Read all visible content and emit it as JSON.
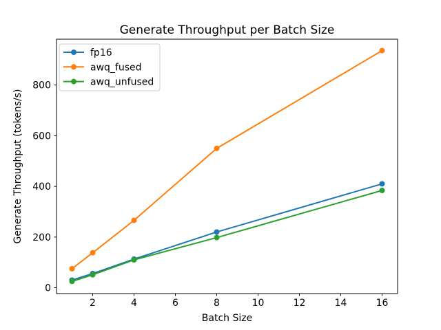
{
  "figure": {
    "background": "#ffffff",
    "spine_color": "#000000",
    "text_color": "#000000"
  },
  "chart_data": {
    "type": "line",
    "title": "Generate Throughput per Batch Size",
    "xlabel": "Batch Size",
    "ylabel": "Generate Throughput (tokens/s)",
    "x": [
      1,
      2,
      4,
      8,
      16
    ],
    "series": [
      {
        "name": "fp16",
        "color": "#1f77b4",
        "values": [
          30,
          56,
          113,
          220,
          410
        ]
      },
      {
        "name": "awq_fused",
        "color": "#ff7f0e",
        "values": [
          75,
          138,
          266,
          550,
          936
        ]
      },
      {
        "name": "awq_unfused",
        "color": "#2ca02c",
        "values": [
          25,
          51,
          110,
          198,
          384
        ]
      }
    ],
    "xticks": [
      2,
      4,
      6,
      8,
      10,
      12,
      14,
      16
    ],
    "yticks": [
      0,
      200,
      400,
      600,
      800
    ],
    "xlim": [
      0.25,
      16.75
    ],
    "ylim": [
      -23,
      981
    ],
    "grid": false,
    "marker": "o",
    "legend_position": "upper left",
    "legend_border_color": "#cccccc",
    "legend_background": "#ffffff"
  }
}
